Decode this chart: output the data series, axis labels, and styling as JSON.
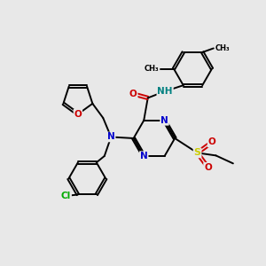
{
  "background_color": "#e8e8e8",
  "bond_color": "#000000",
  "N_color": "#0000cc",
  "O_color": "#cc0000",
  "S_color": "#cccc00",
  "Cl_color": "#00aa00",
  "NH_color": "#008080",
  "figsize": [
    3.0,
    3.0
  ],
  "dpi": 100,
  "xlim": [
    0,
    10
  ],
  "ylim": [
    0,
    10
  ]
}
